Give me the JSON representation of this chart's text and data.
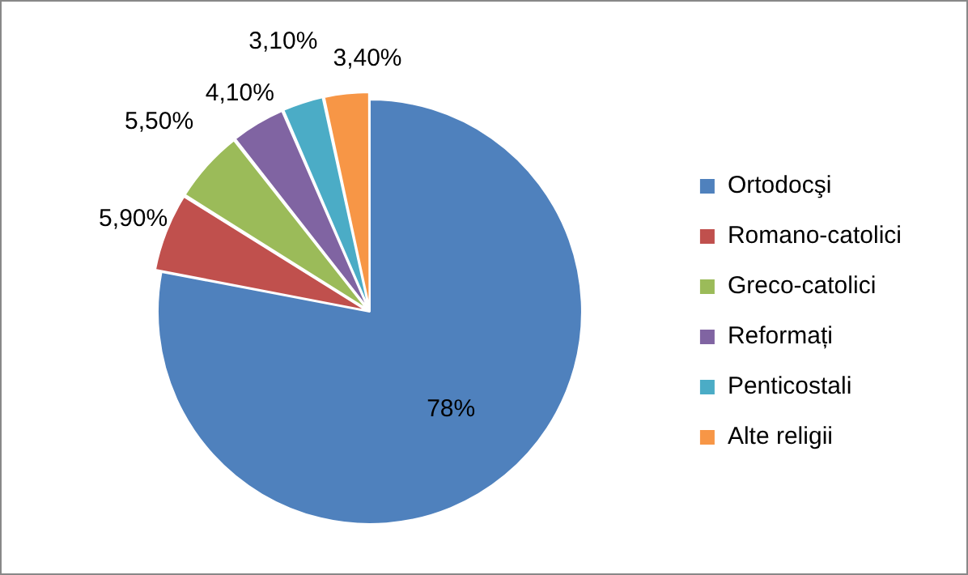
{
  "chart_data": {
    "type": "pie",
    "categories": [
      "Ortodocşi",
      "Romano-catolici",
      "Greco-catolici",
      "Reformați",
      "Penticostali",
      "Alte religii"
    ],
    "values": [
      78,
      5.9,
      5.5,
      4.1,
      3.1,
      3.4
    ],
    "value_labels": [
      "78%",
      "5,90%",
      "5,50%",
      "4,10%",
      "3,10%",
      "3,40%"
    ],
    "colors": [
      "#4f81bd",
      "#c0504d",
      "#9bbb59",
      "#8064a2",
      "#4bacc6",
      "#f79646"
    ],
    "legend": "right"
  }
}
